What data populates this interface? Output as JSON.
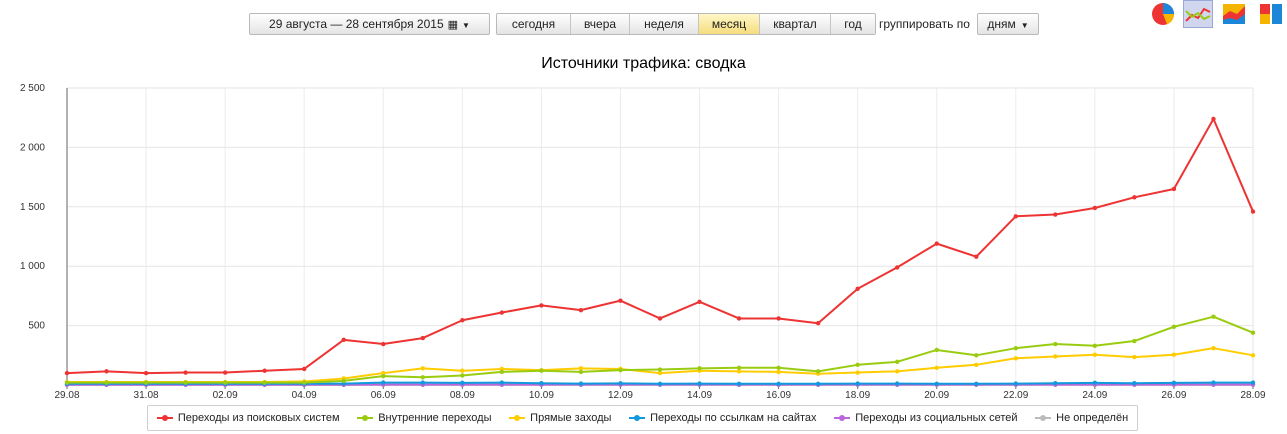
{
  "toolbar": {
    "date_range": "29 августа — 28 сентября 2015",
    "periods": [
      "сегодня",
      "вчера",
      "неделя",
      "месяц",
      "квартал",
      "год"
    ],
    "active_period": "месяц",
    "group_label": "группировать по",
    "group_value": "дням"
  },
  "chart_type_icons": [
    "pie-chart-icon",
    "line-chart-icon",
    "area-chart-icon",
    "bar-chart-icon"
  ],
  "colors": {
    "search": "#ee3333",
    "internal": "#99cc11",
    "direct": "#ffcc00",
    "links": "#1199dd",
    "social": "#bb66dd",
    "undefined": "#bbbbbb",
    "holiday_tick": "#990000"
  },
  "chart_data": {
    "type": "line",
    "title": "Источники трафика: сводка",
    "x_tick_labels": [
      "29.08",
      "31.08",
      "02.09",
      "04.09",
      "06.09",
      "08.09",
      "10.09",
      "12.09",
      "14.09",
      "16.09",
      "18.09",
      "20.09",
      "22.09",
      "24.09",
      "26.09",
      "28.09"
    ],
    "highlighted_ticks": [
      "29.08",
      "06.09",
      "12.09",
      "20.09",
      "26.09"
    ],
    "y_tick_labels": [
      "500",
      "1 000",
      "1 500",
      "2 000",
      "2 500"
    ],
    "ylim": [
      0,
      2500
    ],
    "grid": true,
    "legend_position": "bottom",
    "x": [
      "29.08",
      "30.08",
      "31.08",
      "01.09",
      "02.09",
      "03.09",
      "04.09",
      "05.09",
      "06.09",
      "07.09",
      "08.09",
      "09.09",
      "10.09",
      "11.09",
      "12.09",
      "13.09",
      "14.09",
      "15.09",
      "16.09",
      "17.09",
      "18.09",
      "19.09",
      "20.09",
      "21.09",
      "22.09",
      "23.09",
      "24.09",
      "25.09",
      "26.09",
      "27.09",
      "28.09"
    ],
    "series": [
      {
        "name": "Переходы из поисковых систем",
        "color": "#ee3333",
        "values": [
          100,
          115,
          100,
          105,
          105,
          120,
          135,
          380,
          345,
          395,
          545,
          610,
          670,
          630,
          710,
          560,
          700,
          560,
          560,
          520,
          810,
          990,
          1190,
          1080,
          1420,
          1435,
          1490,
          1580,
          1650,
          2240,
          1460
        ]
      },
      {
        "name": "Внутренние переходы",
        "color": "#99cc11",
        "values": [
          20,
          20,
          20,
          20,
          20,
          20,
          20,
          35,
          75,
          65,
          80,
          110,
          120,
          110,
          125,
          130,
          140,
          145,
          145,
          115,
          170,
          195,
          295,
          250,
          310,
          345,
          330,
          370,
          490,
          575,
          440
        ]
      },
      {
        "name": "Прямые заходы",
        "color": "#ffcc00",
        "values": [
          25,
          25,
          25,
          25,
          25,
          25,
          30,
          55,
          100,
          140,
          120,
          135,
          125,
          140,
          135,
          100,
          120,
          115,
          110,
          95,
          105,
          115,
          145,
          170,
          225,
          240,
          255,
          235,
          255,
          310,
          250
        ]
      },
      {
        "name": "Переходы по ссылкам на сайтах",
        "color": "#1199dd",
        "values": [
          10,
          10,
          10,
          10,
          10,
          10,
          10,
          12,
          20,
          20,
          18,
          20,
          15,
          12,
          14,
          10,
          12,
          10,
          10,
          10,
          12,
          12,
          10,
          10,
          12,
          15,
          18,
          15,
          18,
          20,
          20
        ]
      },
      {
        "name": "Переходы из социальных сетей",
        "color": "#bb66dd",
        "values": [
          2,
          2,
          2,
          2,
          2,
          2,
          2,
          2,
          3,
          3,
          3,
          3,
          3,
          3,
          3,
          3,
          3,
          3,
          3,
          3,
          3,
          3,
          3,
          3,
          3,
          3,
          3,
          3,
          3,
          3,
          3
        ]
      },
      {
        "name": "Не определён",
        "color": "#bbbbbb",
        "values": [
          1,
          1,
          1,
          1,
          1,
          1,
          1,
          1,
          1,
          1,
          1,
          1,
          1,
          1,
          1,
          1,
          1,
          1,
          1,
          1,
          1,
          1,
          1,
          1,
          1,
          1,
          1,
          1,
          1,
          1,
          1
        ]
      }
    ]
  }
}
